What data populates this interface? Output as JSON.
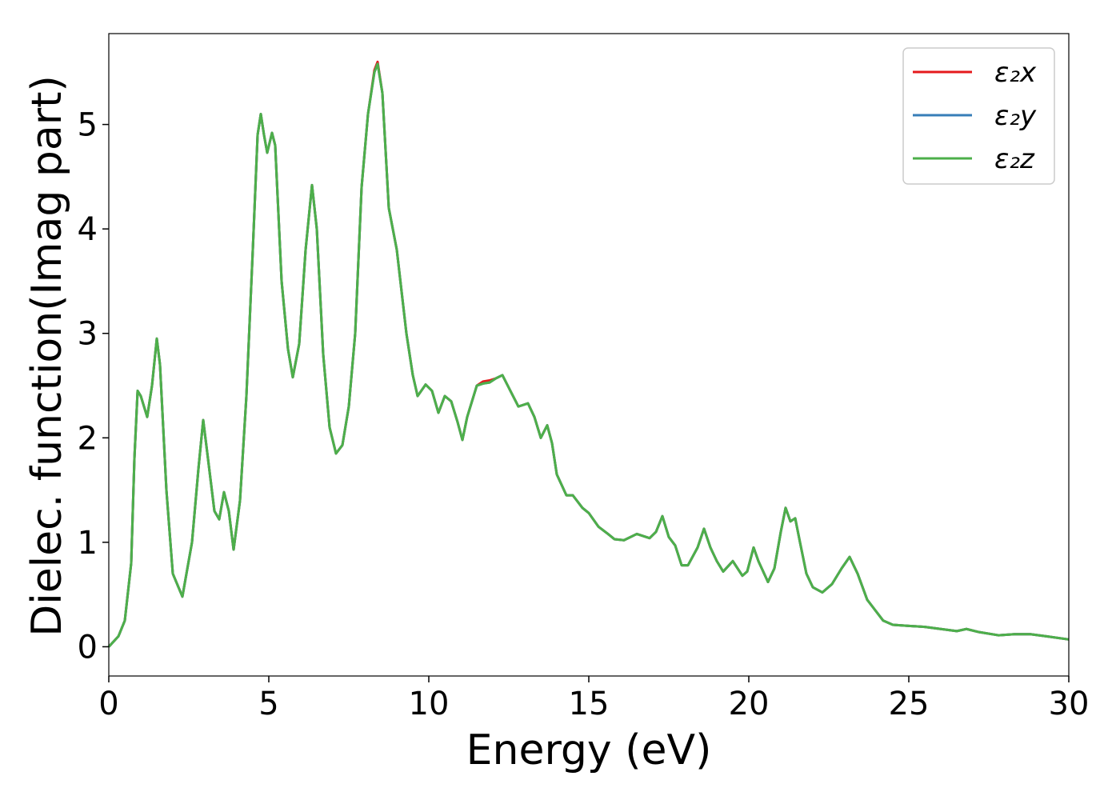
{
  "chart_data": {
    "type": "line",
    "xlabel": "Energy (eV)",
    "ylabel": "Dielec. function(Imag part)",
    "x": [
      0,
      0.3,
      0.5,
      0.7,
      0.8,
      0.9,
      1.0,
      1.2,
      1.35,
      1.5,
      1.6,
      1.8,
      2.0,
      2.3,
      2.6,
      2.8,
      2.95,
      3.1,
      3.3,
      3.45,
      3.6,
      3.75,
      3.9,
      4.1,
      4.3,
      4.5,
      4.65,
      4.75,
      4.85,
      4.95,
      5.1,
      5.2,
      5.4,
      5.6,
      5.75,
      5.95,
      6.15,
      6.35,
      6.5,
      6.7,
      6.9,
      7.1,
      7.3,
      7.5,
      7.7,
      7.9,
      8.1,
      8.3,
      8.4,
      8.55,
      8.75,
      9.0,
      9.3,
      9.5,
      9.65,
      9.9,
      10.1,
      10.3,
      10.5,
      10.7,
      10.9,
      11.05,
      11.2,
      11.5,
      11.7,
      11.9,
      12.1,
      12.3,
      12.5,
      12.8,
      13.1,
      13.3,
      13.5,
      13.7,
      13.85,
      14.0,
      14.3,
      14.5,
      14.8,
      15.0,
      15.3,
      15.6,
      15.8,
      16.1,
      16.5,
      16.9,
      17.1,
      17.3,
      17.5,
      17.7,
      17.9,
      18.1,
      18.4,
      18.6,
      18.8,
      19.0,
      19.2,
      19.5,
      19.8,
      19.95,
      20.15,
      20.3,
      20.6,
      20.8,
      21.0,
      21.15,
      21.3,
      21.45,
      21.6,
      21.8,
      22.0,
      22.3,
      22.6,
      22.9,
      23.15,
      23.4,
      23.7,
      23.9,
      24.2,
      24.5,
      25.0,
      25.5,
      26.0,
      26.5,
      26.8,
      27.2,
      27.8,
      28.3,
      28.8,
      29.3,
      30.0
    ],
    "series": [
      {
        "name": "ε₂x",
        "color": "#e41a1c",
        "values": [
          0,
          0.1,
          0.25,
          0.8,
          1.8,
          2.45,
          2.4,
          2.2,
          2.5,
          2.95,
          2.7,
          1.5,
          0.7,
          0.48,
          1.0,
          1.7,
          2.17,
          1.8,
          1.3,
          1.22,
          1.48,
          1.3,
          0.93,
          1.4,
          2.4,
          3.8,
          4.9,
          5.1,
          4.9,
          4.73,
          4.92,
          4.8,
          3.5,
          2.85,
          2.58,
          2.9,
          3.8,
          4.42,
          4.0,
          2.8,
          2.1,
          1.85,
          1.93,
          2.3,
          3.0,
          4.4,
          5.1,
          5.52,
          5.6,
          5.3,
          4.2,
          3.8,
          3.0,
          2.6,
          2.4,
          2.51,
          2.45,
          2.24,
          2.4,
          2.35,
          2.15,
          1.98,
          2.2,
          2.5,
          2.54,
          2.55,
          2.57,
          2.6,
          2.48,
          2.3,
          2.33,
          2.2,
          2.0,
          2.12,
          1.95,
          1.65,
          1.45,
          1.45,
          1.33,
          1.28,
          1.15,
          1.08,
          1.03,
          1.02,
          1.08,
          1.04,
          1.1,
          1.25,
          1.05,
          0.97,
          0.78,
          0.78,
          0.95,
          1.13,
          0.95,
          0.82,
          0.72,
          0.82,
          0.68,
          0.72,
          0.95,
          0.82,
          0.62,
          0.75,
          1.1,
          1.33,
          1.2,
          1.23,
          1.0,
          0.7,
          0.57,
          0.52,
          0.6,
          0.75,
          0.86,
          0.7,
          0.45,
          0.37,
          0.25,
          0.21,
          0.2,
          0.19,
          0.17,
          0.15,
          0.17,
          0.14,
          0.11,
          0.12,
          0.12,
          0.1,
          0.07
        ]
      },
      {
        "name": "ε₂y",
        "color": "#377eb8",
        "values": [
          0,
          0.1,
          0.25,
          0.8,
          1.8,
          2.45,
          2.4,
          2.2,
          2.5,
          2.95,
          2.7,
          1.5,
          0.7,
          0.48,
          1.0,
          1.7,
          2.17,
          1.8,
          1.3,
          1.22,
          1.48,
          1.3,
          0.93,
          1.4,
          2.4,
          3.8,
          4.9,
          5.1,
          4.9,
          4.73,
          4.92,
          4.8,
          3.5,
          2.85,
          2.58,
          2.9,
          3.8,
          4.42,
          4.0,
          2.8,
          2.1,
          1.85,
          1.93,
          2.3,
          3.0,
          4.4,
          5.1,
          5.5,
          5.58,
          5.3,
          4.2,
          3.8,
          3.0,
          2.6,
          2.4,
          2.51,
          2.45,
          2.24,
          2.4,
          2.35,
          2.15,
          1.98,
          2.2,
          2.5,
          2.52,
          2.53,
          2.57,
          2.6,
          2.48,
          2.3,
          2.33,
          2.2,
          2.0,
          2.12,
          1.95,
          1.65,
          1.45,
          1.45,
          1.33,
          1.28,
          1.15,
          1.08,
          1.03,
          1.02,
          1.08,
          1.04,
          1.1,
          1.25,
          1.05,
          0.97,
          0.78,
          0.78,
          0.95,
          1.13,
          0.95,
          0.82,
          0.72,
          0.82,
          0.68,
          0.72,
          0.95,
          0.82,
          0.62,
          0.75,
          1.1,
          1.33,
          1.2,
          1.23,
          1.0,
          0.7,
          0.57,
          0.52,
          0.6,
          0.75,
          0.86,
          0.7,
          0.45,
          0.37,
          0.25,
          0.21,
          0.2,
          0.19,
          0.17,
          0.15,
          0.17,
          0.14,
          0.11,
          0.12,
          0.12,
          0.1,
          0.07
        ]
      },
      {
        "name": "ε₂z",
        "color": "#4daf4a",
        "values": [
          0,
          0.1,
          0.25,
          0.8,
          1.8,
          2.45,
          2.4,
          2.2,
          2.5,
          2.95,
          2.7,
          1.5,
          0.7,
          0.48,
          1.0,
          1.7,
          2.17,
          1.8,
          1.3,
          1.22,
          1.48,
          1.3,
          0.93,
          1.4,
          2.4,
          3.8,
          4.9,
          5.1,
          4.9,
          4.73,
          4.92,
          4.8,
          3.5,
          2.85,
          2.58,
          2.9,
          3.8,
          4.42,
          4.0,
          2.8,
          2.1,
          1.85,
          1.93,
          2.3,
          3.0,
          4.4,
          5.1,
          5.5,
          5.58,
          5.3,
          4.2,
          3.8,
          3.0,
          2.6,
          2.4,
          2.51,
          2.45,
          2.24,
          2.4,
          2.35,
          2.15,
          1.98,
          2.2,
          2.5,
          2.52,
          2.53,
          2.57,
          2.6,
          2.48,
          2.3,
          2.33,
          2.2,
          2.0,
          2.12,
          1.95,
          1.65,
          1.45,
          1.45,
          1.33,
          1.28,
          1.15,
          1.08,
          1.03,
          1.02,
          1.08,
          1.04,
          1.1,
          1.25,
          1.05,
          0.97,
          0.78,
          0.78,
          0.95,
          1.13,
          0.95,
          0.82,
          0.72,
          0.82,
          0.68,
          0.72,
          0.95,
          0.82,
          0.62,
          0.75,
          1.1,
          1.33,
          1.2,
          1.23,
          1.0,
          0.7,
          0.57,
          0.52,
          0.6,
          0.75,
          0.86,
          0.7,
          0.45,
          0.37,
          0.25,
          0.21,
          0.2,
          0.19,
          0.17,
          0.15,
          0.17,
          0.14,
          0.11,
          0.12,
          0.12,
          0.1,
          0.07
        ]
      }
    ],
    "xlim": [
      0,
      30
    ],
    "xticks": [
      0,
      5,
      10,
      15,
      20,
      25,
      30
    ],
    "ylim": [
      -0.28,
      5.87
    ],
    "yticks": [
      0,
      1,
      2,
      3,
      4,
      5
    ],
    "grid": false,
    "legend": "upper right"
  }
}
